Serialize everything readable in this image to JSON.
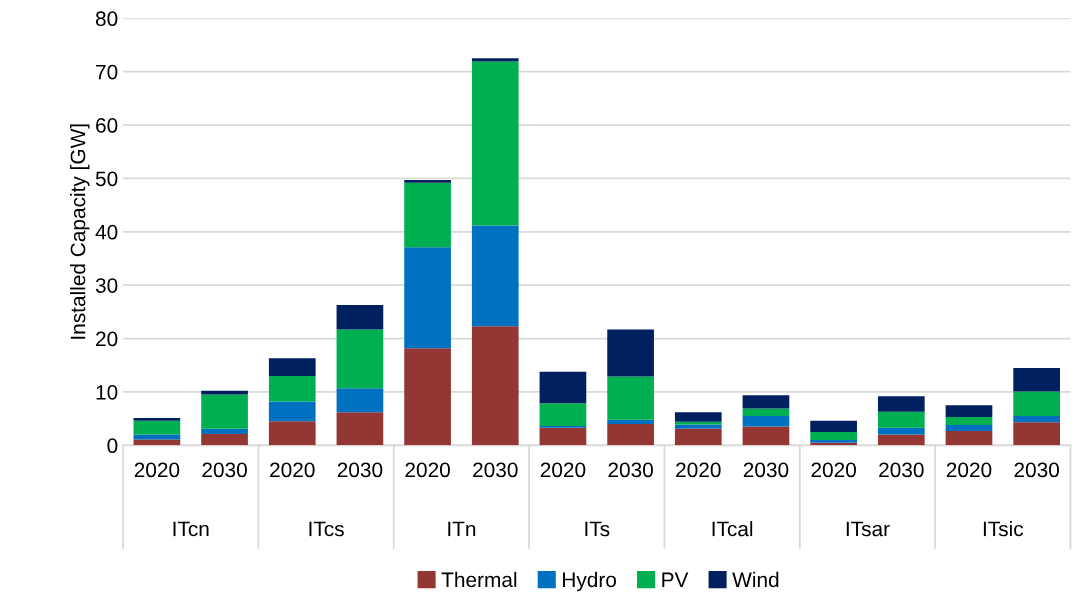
{
  "chart_data": {
    "type": "bar",
    "stacked": true,
    "ylabel": "Installed Capacity [GW]",
    "categories": [
      "2020",
      "2030",
      "2020",
      "2030",
      "2020",
      "2030",
      "2020",
      "2030",
      "2020",
      "2030",
      "2020",
      "2030",
      "2020",
      "2030"
    ],
    "annotations": [
      "ITcn",
      "ITcs",
      "ITn",
      "ITs",
      "ITcal",
      "ITsar",
      "ITsic"
    ],
    "series": [
      {
        "name": "Thermal",
        "color": "#943634",
        "values": [
          1.1,
          2.1,
          4.5,
          6.2,
          18.2,
          22.3,
          3.3,
          4.0,
          3.1,
          3.5,
          0.5,
          2.0,
          2.7,
          4.3
        ]
      },
      {
        "name": "Hydro",
        "color": "#0070c0",
        "values": [
          0.9,
          1.0,
          3.7,
          4.5,
          18.9,
          18.9,
          0.3,
          0.8,
          0.8,
          2.0,
          0.5,
          1.3,
          1.1,
          1.2
        ]
      },
      {
        "name": "PV",
        "color": "#00b050",
        "values": [
          2.6,
          6.4,
          4.8,
          11.0,
          12.1,
          30.7,
          4.3,
          8.1,
          0.5,
          1.4,
          1.5,
          3.0,
          1.5,
          4.6
        ]
      },
      {
        "name": "Wind",
        "color": "#002060",
        "values": [
          0.5,
          0.7,
          3.3,
          4.6,
          0.5,
          0.6,
          5.9,
          8.8,
          1.8,
          2.5,
          2.1,
          2.9,
          2.2,
          4.4
        ]
      }
    ],
    "ylim": [
      0,
      80
    ],
    "yticks": [
      0,
      10,
      20,
      30,
      40,
      50,
      60,
      70,
      80
    ],
    "grid": "y",
    "legend": "bottom"
  }
}
